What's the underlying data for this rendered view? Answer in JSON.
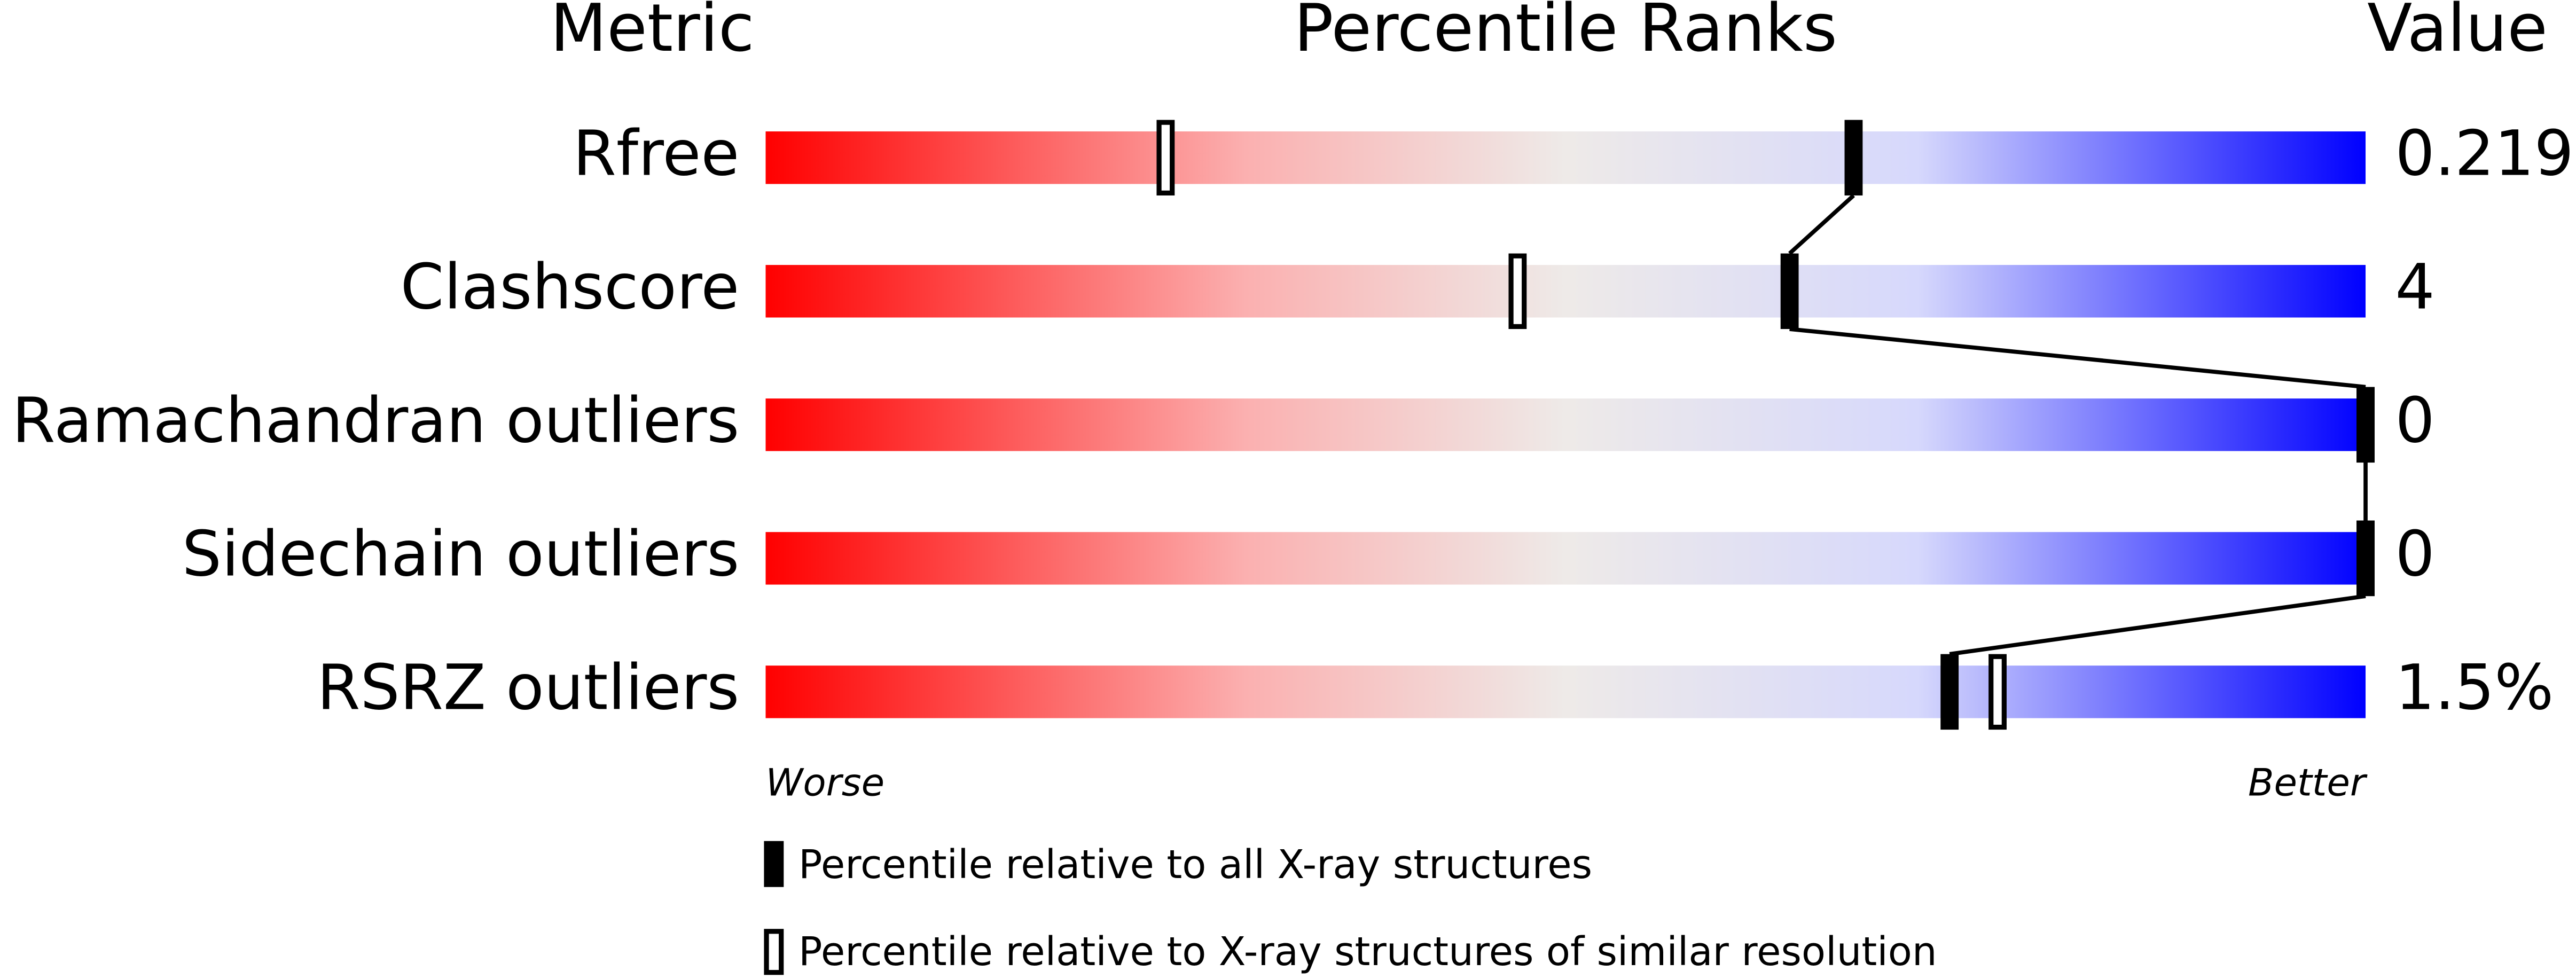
{
  "chart_data": {
    "type": "percentile",
    "title": "Percentile Ranks",
    "metric_header": "Metric",
    "value_header": "Value",
    "categories": [
      "Rfree",
      "Clashscore",
      "Ramachandran outliers",
      "Sidechain outliers",
      "RSRZ outliers"
    ],
    "metric_values": [
      "0.219",
      "4",
      "0",
      "0",
      "1.5%"
    ],
    "series": [
      {
        "name": "Percentile relative to all X-ray structures",
        "color": "#000000",
        "marker": "filled",
        "values": [
          68,
          64,
          100,
          100,
          74
        ]
      },
      {
        "name": "Percentile relative to X-ray structures of similar resolution",
        "color": "#000000",
        "marker": "open",
        "values": [
          25,
          47,
          100,
          100,
          77
        ]
      }
    ],
    "xlim": [
      0,
      100
    ],
    "worse_label": "Worse",
    "better_label": "Better",
    "connect_series": 0
  }
}
